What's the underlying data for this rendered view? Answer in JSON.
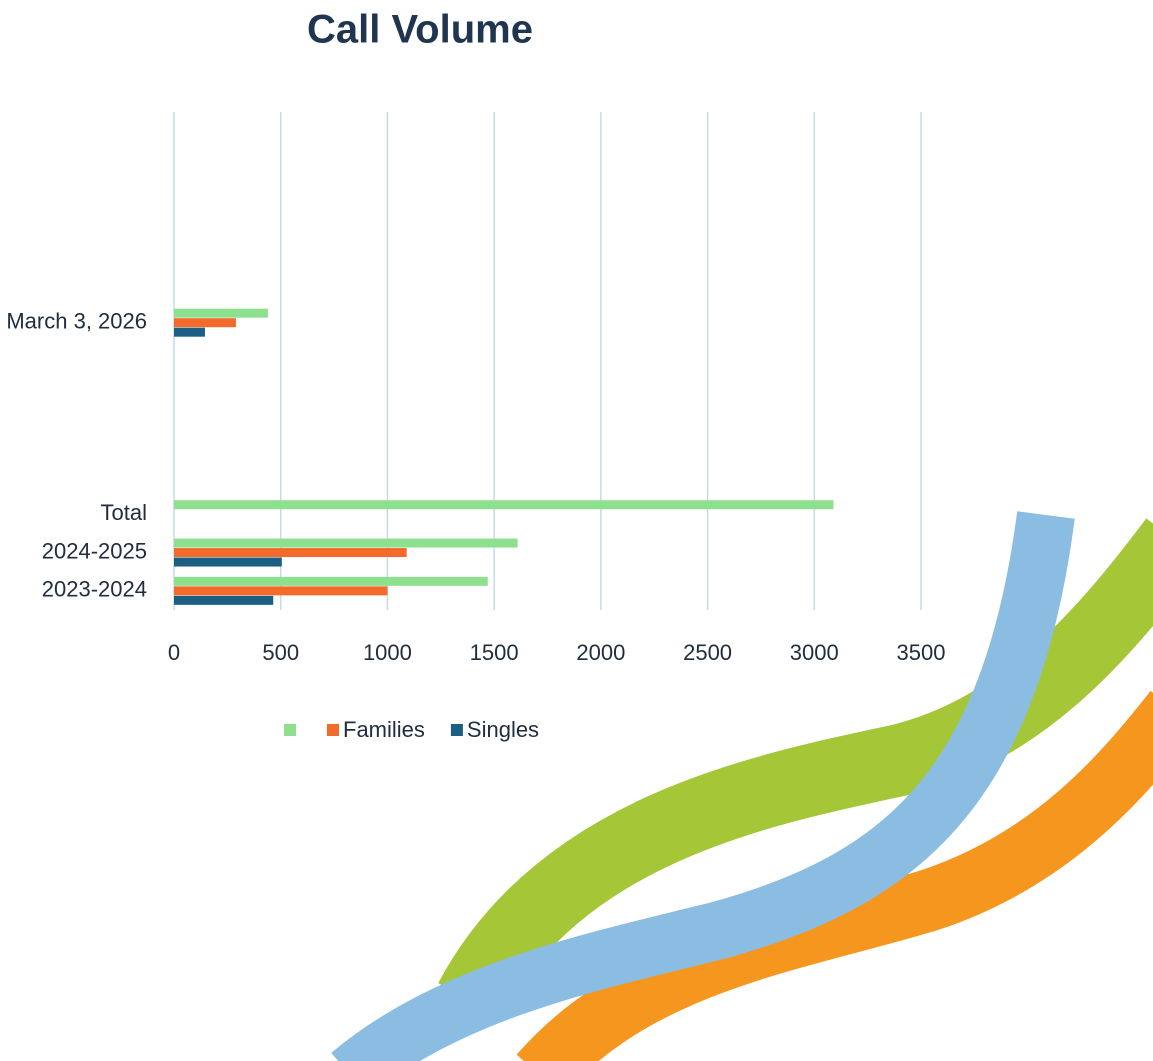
{
  "chart_data": {
    "type": "bar",
    "orientation": "horizontal",
    "title": "Call Volume",
    "categories": [
      "2023-2024",
      "2024-2025",
      "Total",
      null,
      null,
      null,
      null,
      "March 3, 2026",
      null,
      null,
      null,
      null,
      null
    ],
    "series": [
      {
        "name": null,
        "color": "#8ee08e",
        "values": [
          1470,
          1610,
          3090,
          null,
          null,
          null,
          null,
          440,
          null,
          null,
          null,
          null,
          null
        ]
      },
      {
        "name": "Families",
        "color": "#f26b2a",
        "values": [
          1000,
          1090,
          null,
          null,
          null,
          null,
          null,
          290,
          null,
          null,
          null,
          null,
          null
        ]
      },
      {
        "name": "Singles",
        "color": "#1c5f82",
        "values": [
          465,
          505,
          null,
          null,
          null,
          null,
          null,
          145,
          null,
          null,
          null,
          null,
          null
        ]
      }
    ],
    "xlim": [
      0,
      3500
    ],
    "xticks": [
      0,
      500,
      1000,
      1500,
      2000,
      2500,
      3000,
      3500
    ],
    "grid": true
  }
}
